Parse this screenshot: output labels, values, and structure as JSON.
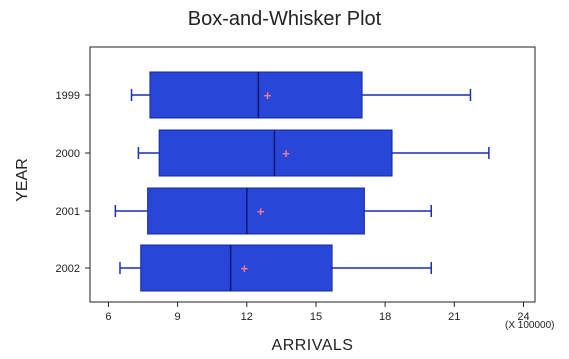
{
  "chart_data": {
    "type": "boxplot",
    "title": "Box-and-Whisker Plot",
    "xlabel": "ARRIVALS",
    "ylabel": "YEAR",
    "x_scale_note": "(X 100000)",
    "xlim": [
      5.2,
      24.5
    ],
    "xticks": [
      6,
      9,
      12,
      15,
      18,
      21,
      24
    ],
    "categories": [
      "1999",
      "2000",
      "2001",
      "2002"
    ],
    "series": [
      {
        "name": "1999",
        "min": 7.0,
        "q1": 7.8,
        "median": 12.5,
        "q3": 17.0,
        "max": 21.7,
        "mean": 12.9
      },
      {
        "name": "2000",
        "min": 7.3,
        "q1": 8.2,
        "median": 13.2,
        "q3": 18.3,
        "max": 22.5,
        "mean": 13.7
      },
      {
        "name": "2001",
        "min": 6.3,
        "q1": 7.7,
        "median": 12.0,
        "q3": 17.1,
        "max": 20.0,
        "mean": 12.6
      },
      {
        "name": "2002",
        "min": 6.5,
        "q1": 7.4,
        "median": 11.3,
        "q3": 15.7,
        "max": 20.0,
        "mean": 11.9
      }
    ],
    "grid": false,
    "colors": {
      "box_fill": "#2846d8",
      "box_stroke": "#1428a0",
      "whisker": "#1a2fb8",
      "mean_marker": "#ff7a8a",
      "frame": "#222222"
    }
  }
}
